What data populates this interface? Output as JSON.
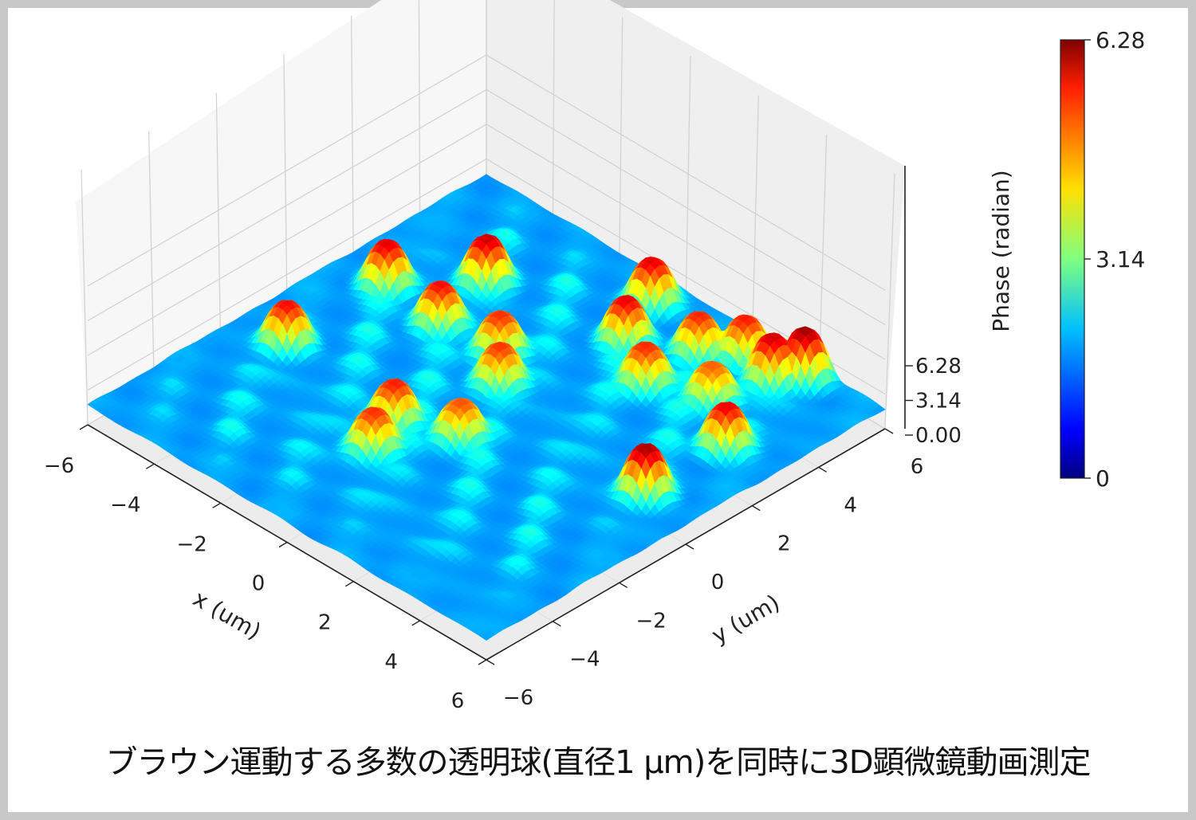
{
  "caption": "ブラウン運動する多数の透明球(直径1 μm)を同時に3D顕微鏡動画測定",
  "chart_data": {
    "type": "surface3d",
    "xlabel": "x (um)",
    "ylabel": "y (um)",
    "zlabel": "",
    "x_ticks": [
      "−6",
      "−4",
      "−2",
      "0",
      "2",
      "4",
      "6"
    ],
    "y_ticks": [
      "−6",
      "−4",
      "−2",
      "0",
      "2",
      "4",
      "6"
    ],
    "z_ticks": [
      "0.00",
      "3.14",
      "6.28"
    ],
    "xlim": [
      -6,
      6
    ],
    "ylim": [
      -6,
      6
    ],
    "zlim": [
      0,
      6.28
    ],
    "colormap": "jet",
    "colorbar": {
      "label": "Phase (radian)",
      "ticks": [
        "0",
        "3.14",
        "6.28"
      ],
      "range": [
        0,
        6.28
      ]
    },
    "background_level": 1.8,
    "peaks": [
      {
        "x": -4.6,
        "y": 1.6,
        "z": 5.6
      },
      {
        "x": -4.6,
        "y": -1.4,
        "z": 5.4
      },
      {
        "x": -3.2,
        "y": 3.2,
        "z": 5.8
      },
      {
        "x": -2.8,
        "y": 1.4,
        "z": 5.4
      },
      {
        "x": -1.2,
        "y": 1.6,
        "z": 5.3
      },
      {
        "x": -0.4,
        "y": 0.8,
        "z": 5.2
      },
      {
        "x": -1.0,
        "y": -1.8,
        "z": 5.4
      },
      {
        "x": -0.6,
        "y": -2.8,
        "z": 5.3
      },
      {
        "x": 0.4,
        "y": -1.2,
        "z": 5.1
      },
      {
        "x": -0.2,
        "y": 5.2,
        "z": 5.6
      },
      {
        "x": 0.4,
        "y": 3.8,
        "z": 5.5
      },
      {
        "x": 1.8,
        "y": 3.0,
        "z": 5.4
      },
      {
        "x": 1.8,
        "y": 4.6,
        "z": 5.2
      },
      {
        "x": 2.6,
        "y": 5.2,
        "z": 5.4
      },
      {
        "x": 3.6,
        "y": 5.0,
        "z": 5.8
      },
      {
        "x": 4.0,
        "y": 5.6,
        "z": 6.0
      },
      {
        "x": 3.2,
        "y": 3.6,
        "z": 5.0
      },
      {
        "x": 4.6,
        "y": 2.6,
        "z": 5.6
      },
      {
        "x": 4.6,
        "y": 0.2,
        "z": 6.0
      }
    ]
  }
}
